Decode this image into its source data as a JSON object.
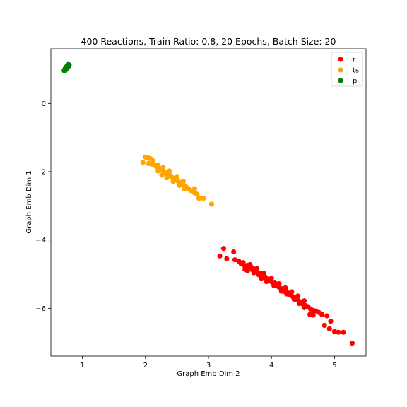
{
  "chart_data": {
    "type": "scatter",
    "title": "400 Reactions, Train Ratio: 0.8, 20 Epochs, Batch Size: 20",
    "xlabel": "Graph Emb Dim 2",
    "ylabel": "Graph Emb Dim 1",
    "xlim": [
      0.5,
      5.5
    ],
    "ylim": [
      -7.4,
      1.6
    ],
    "xticks": [
      1,
      2,
      3,
      4,
      5
    ],
    "yticks": [
      0,
      -2,
      -4,
      -6
    ],
    "grid": false,
    "legend_position": "top-right",
    "series": [
      {
        "name": "r",
        "color": "#ff0000",
        "points": [
          [
            3.24,
            -4.25
          ],
          [
            3.29,
            -4.55
          ],
          [
            3.18,
            -4.47
          ],
          [
            3.4,
            -4.35
          ],
          [
            3.42,
            -4.58
          ],
          [
            3.48,
            -4.62
          ],
          [
            3.52,
            -4.7
          ],
          [
            3.55,
            -4.66
          ],
          [
            3.58,
            -4.78
          ],
          [
            3.62,
            -4.74
          ],
          [
            3.65,
            -4.82
          ],
          [
            3.68,
            -4.8
          ],
          [
            3.7,
            -4.88
          ],
          [
            3.73,
            -4.85
          ],
          [
            3.76,
            -4.92
          ],
          [
            3.78,
            -4.96
          ],
          [
            3.8,
            -5.02
          ],
          [
            3.83,
            -4.98
          ],
          [
            3.86,
            -5.05
          ],
          [
            3.88,
            -5.1
          ],
          [
            3.9,
            -5.08
          ],
          [
            3.93,
            -5.14
          ],
          [
            3.95,
            -5.18
          ],
          [
            3.97,
            -5.16
          ],
          [
            4.0,
            -5.22
          ],
          [
            4.02,
            -5.26
          ],
          [
            4.05,
            -5.24
          ],
          [
            4.07,
            -5.3
          ],
          [
            4.1,
            -5.35
          ],
          [
            4.12,
            -5.38
          ],
          [
            4.15,
            -5.42
          ],
          [
            4.18,
            -5.45
          ],
          [
            4.2,
            -5.5
          ],
          [
            4.23,
            -5.48
          ],
          [
            4.26,
            -5.55
          ],
          [
            4.28,
            -5.6
          ],
          [
            4.31,
            -5.62
          ],
          [
            4.34,
            -5.66
          ],
          [
            4.37,
            -5.7
          ],
          [
            4.4,
            -5.74
          ],
          [
            4.43,
            -5.78
          ],
          [
            4.47,
            -5.82
          ],
          [
            4.5,
            -5.88
          ],
          [
            4.54,
            -5.92
          ],
          [
            4.58,
            -5.95
          ],
          [
            4.62,
            -6.02
          ],
          [
            4.66,
            -6.06
          ],
          [
            4.7,
            -6.08
          ],
          [
            4.61,
            -6.18
          ],
          [
            4.66,
            -6.2
          ],
          [
            4.75,
            -6.12
          ],
          [
            4.8,
            -6.18
          ],
          [
            4.88,
            -6.22
          ],
          [
            4.94,
            -6.38
          ],
          [
            4.92,
            -6.6
          ],
          [
            4.84,
            -6.5
          ],
          [
            5.0,
            -6.68
          ],
          [
            5.06,
            -6.7
          ],
          [
            5.14,
            -6.7
          ],
          [
            5.28,
            -7.02
          ],
          [
            3.58,
            -4.86
          ],
          [
            3.62,
            -4.9
          ],
          [
            3.72,
            -4.96
          ],
          [
            3.84,
            -5.12
          ],
          [
            3.92,
            -5.22
          ],
          [
            4.04,
            -5.34
          ],
          [
            4.16,
            -5.5
          ],
          [
            4.24,
            -5.58
          ],
          [
            4.36,
            -5.74
          ],
          [
            4.44,
            -5.86
          ],
          [
            4.52,
            -5.98
          ],
          [
            3.66,
            -4.72
          ],
          [
            3.77,
            -4.84
          ],
          [
            3.88,
            -4.98
          ],
          [
            4.0,
            -5.12
          ],
          [
            4.12,
            -5.28
          ],
          [
            4.22,
            -5.4
          ],
          [
            4.32,
            -5.52
          ],
          [
            4.42,
            -5.64
          ],
          [
            4.52,
            -5.78
          ]
        ]
      },
      {
        "name": "ts",
        "color": "#ffa500",
        "points": [
          [
            1.96,
            -1.73
          ],
          [
            2.0,
            -1.57
          ],
          [
            2.05,
            -1.6
          ],
          [
            2.08,
            -1.62
          ],
          [
            2.05,
            -1.76
          ],
          [
            2.1,
            -1.78
          ],
          [
            2.12,
            -1.68
          ],
          [
            2.15,
            -1.82
          ],
          [
            2.18,
            -1.86
          ],
          [
            2.2,
            -1.8
          ],
          [
            2.22,
            -1.9
          ],
          [
            2.25,
            -1.95
          ],
          [
            2.27,
            -1.92
          ],
          [
            2.3,
            -2.0
          ],
          [
            2.32,
            -2.04
          ],
          [
            2.35,
            -2.08
          ],
          [
            2.37,
            -2.05
          ],
          [
            2.4,
            -2.12
          ],
          [
            2.42,
            -2.16
          ],
          [
            2.45,
            -2.2
          ],
          [
            2.48,
            -2.22
          ],
          [
            2.5,
            -2.26
          ],
          [
            2.53,
            -2.3
          ],
          [
            2.56,
            -2.33
          ],
          [
            2.58,
            -2.36
          ],
          [
            2.61,
            -2.4
          ],
          [
            2.64,
            -2.44
          ],
          [
            2.67,
            -2.48
          ],
          [
            2.7,
            -2.52
          ],
          [
            2.73,
            -2.56
          ],
          [
            2.78,
            -2.62
          ],
          [
            2.82,
            -2.66
          ],
          [
            2.78,
            -2.5
          ],
          [
            2.85,
            -2.78
          ],
          [
            2.92,
            -2.78
          ],
          [
            3.05,
            -2.95
          ],
          [
            2.26,
            -2.1
          ],
          [
            2.34,
            -2.18
          ],
          [
            2.44,
            -2.28
          ],
          [
            2.54,
            -2.4
          ],
          [
            2.62,
            -2.5
          ],
          [
            2.2,
            -1.98
          ],
          [
            2.28,
            -1.88
          ],
          [
            2.38,
            -1.98
          ],
          [
            2.5,
            -2.14
          ],
          [
            2.6,
            -2.28
          ]
        ]
      },
      {
        "name": "p",
        "color": "#008000",
        "points": [
          [
            0.71,
            0.96
          ],
          [
            0.72,
            1.0
          ],
          [
            0.73,
            1.03
          ],
          [
            0.74,
            1.06
          ],
          [
            0.75,
            1.08
          ],
          [
            0.76,
            1.1
          ],
          [
            0.77,
            1.12
          ],
          [
            0.78,
            1.14
          ],
          [
            0.73,
            0.98
          ],
          [
            0.75,
            1.02
          ],
          [
            0.77,
            1.07
          ],
          [
            0.79,
            1.12
          ],
          [
            0.72,
            0.95
          ],
          [
            0.74,
            0.99
          ],
          [
            0.76,
            1.04
          ],
          [
            0.78,
            1.09
          ]
        ]
      }
    ]
  }
}
